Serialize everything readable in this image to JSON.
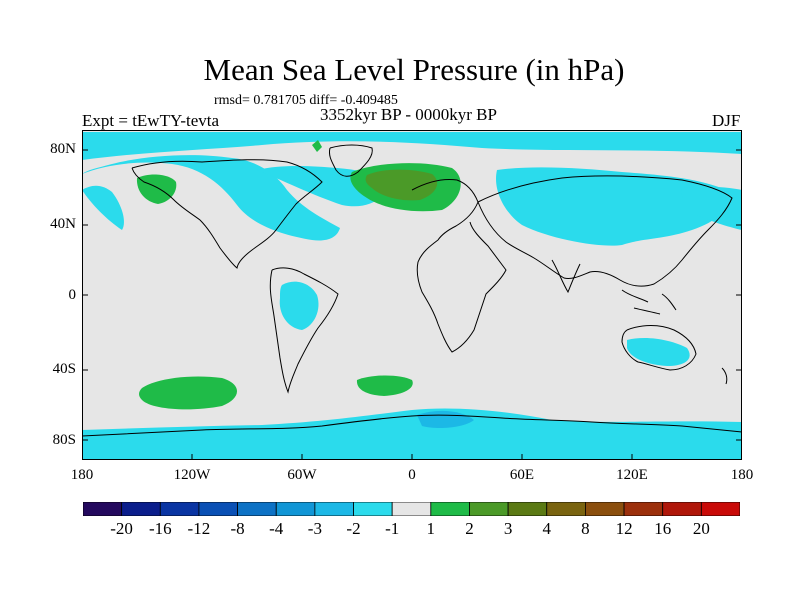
{
  "title": "Mean Sea Level Pressure (in hPa)",
  "stats": "rmsd= 0.781705 diff= -0.409485",
  "expt": "Expt = tEwTY-tevta",
  "period": "3352kyr BP - 0000kyr BP",
  "season": "DJF",
  "map": {
    "lat_labels": [
      "80N",
      "40N",
      "0",
      "40S",
      "80S"
    ],
    "lon_labels": [
      "180",
      "120W",
      "60W",
      "0",
      "60E",
      "120E",
      "180"
    ],
    "background_color": "#e6e6e6",
    "coastline_color": "#000000"
  },
  "colorbar": {
    "labels": [
      "-20",
      "-16",
      "-12",
      "-8",
      "-4",
      "-3",
      "-2",
      "-1",
      "1",
      "2",
      "3",
      "4",
      "8",
      "12",
      "16",
      "20"
    ],
    "colors": [
      "#24095e",
      "#0b1e8c",
      "#0a35a3",
      "#0a50b5",
      "#0d72c5",
      "#1196d6",
      "#1cb8e6",
      "#2bdbec",
      "#e6e6e6",
      "#1fbb48",
      "#4b9a28",
      "#5b7a14",
      "#7a6410",
      "#8b4f0e",
      "#9c300c",
      "#b0170a",
      "#c90a08"
    ]
  }
}
